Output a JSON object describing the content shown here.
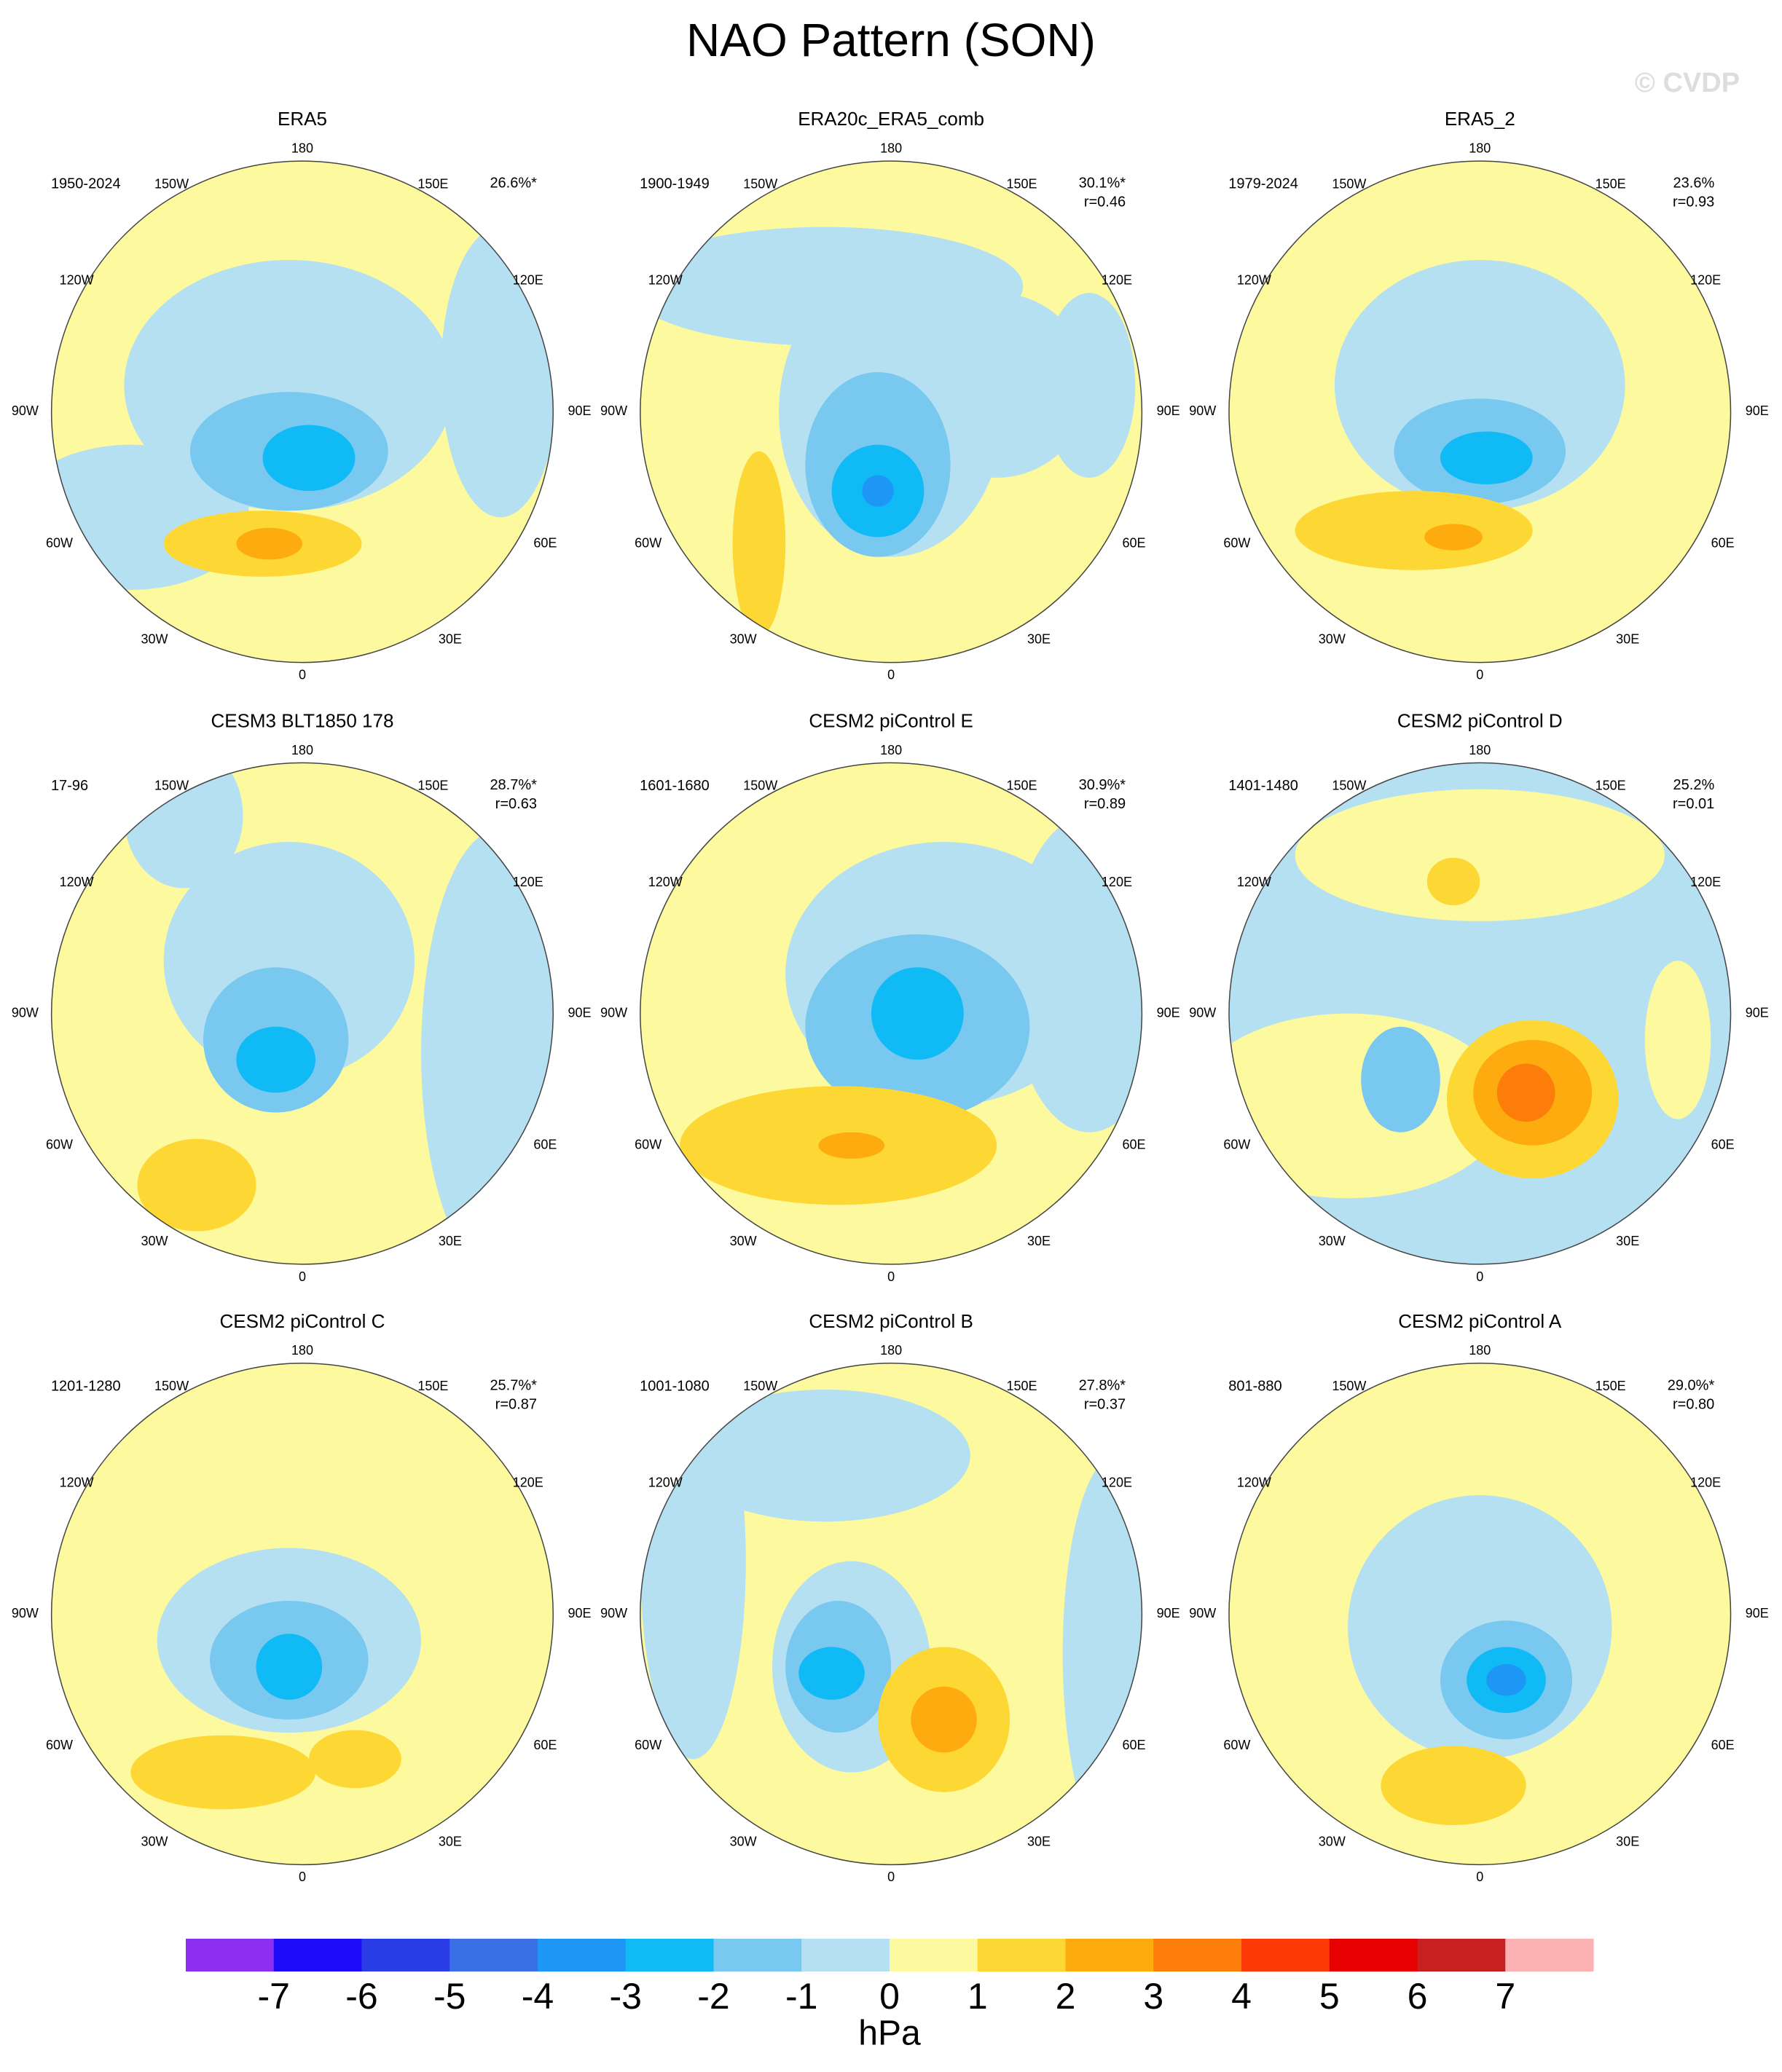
{
  "title": "NAO Pattern (SON)",
  "watermark": "© CVDP",
  "lon_labels": [
    "180",
    "150E",
    "120E",
    "90E",
    "60E",
    "30E",
    "0",
    "30W",
    "60W",
    "90W",
    "120W",
    "150W"
  ],
  "panels": [
    {
      "title": "ERA5",
      "period": "1950-2024",
      "pct_var": "26.6%*"
    },
    {
      "title": "ERA20c_ERA5_comb",
      "period": "1900-1949",
      "pct_var": "30.1%*",
      "r": "r=0.46"
    },
    {
      "title": "ERA5_2",
      "period": "1979-2024",
      "pct_var": "23.6%",
      "r": "r=0.93"
    },
    {
      "title": "CESM3 BLT1850 178",
      "period": "17-96",
      "pct_var": "28.7%*",
      "r": "r=0.63"
    },
    {
      "title": "CESM2 piControl E",
      "period": "1601-1680",
      "pct_var": "30.9%*",
      "r": "r=0.89"
    },
    {
      "title": "CESM2 piControl D",
      "period": "1401-1480",
      "pct_var": "25.2%",
      "r": "r=0.01"
    },
    {
      "title": "CESM2 piControl C",
      "period": "1201-1280",
      "pct_var": "25.7%*",
      "r": "r=0.87"
    },
    {
      "title": "CESM2 piControl B",
      "period": "1001-1080",
      "pct_var": "27.8%*",
      "r": "r=0.37"
    },
    {
      "title": "CESM2 piControl A",
      "period": "801-880",
      "pct_var": "29.0%*",
      "r": "r=0.80"
    }
  ],
  "colorbar": {
    "colors": [
      "#8d2ff0",
      "#1e0cf8",
      "#2a3ee8",
      "#3a6fe6",
      "#1e96f5",
      "#0fbaf5",
      "#78c8f0",
      "#b4e0f2",
      "#fdf99e",
      "#fdd835",
      "#fdab0e",
      "#fc7d0a",
      "#fc3a05",
      "#e60000",
      "#c82020",
      "#fcb2b2"
    ],
    "ticks": [
      -7,
      -6,
      -5,
      -4,
      -3,
      -2,
      -1,
      0,
      1,
      2,
      3,
      4,
      5,
      6,
      7
    ],
    "label": "hPa"
  }
}
